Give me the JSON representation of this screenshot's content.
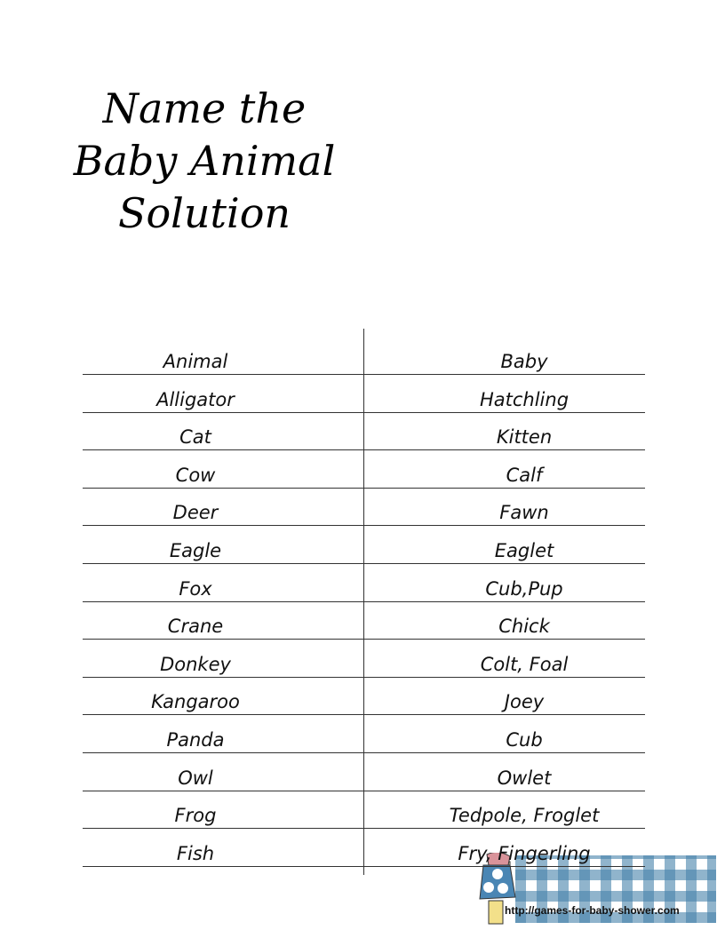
{
  "title": {
    "lines": [
      "Name the",
      "Baby Animal",
      "Solution"
    ]
  },
  "table": {
    "headers": [
      "Animal",
      "Baby"
    ],
    "rows": [
      [
        "Alligator",
        "Hatchling"
      ],
      [
        "Cat",
        "Kitten"
      ],
      [
        "Cow",
        "Calf"
      ],
      [
        "Deer",
        "Fawn"
      ],
      [
        "Eagle",
        "Eaglet"
      ],
      [
        "Fox",
        "Cub,Pup"
      ],
      [
        "Crane",
        "Chick"
      ],
      [
        "Donkey",
        "Colt,  Foal"
      ],
      [
        "Kangaroo",
        "Joey"
      ],
      [
        "Panda",
        "Cub"
      ],
      [
        "Owl",
        "Owlet"
      ],
      [
        "Frog",
        "Tedpole,  Froglet"
      ],
      [
        "Fish",
        "Fry, Fingerling"
      ]
    ]
  },
  "footer": {
    "url": "http://games-for-baby-shower.com",
    "gingham_color": "#4682aa"
  }
}
